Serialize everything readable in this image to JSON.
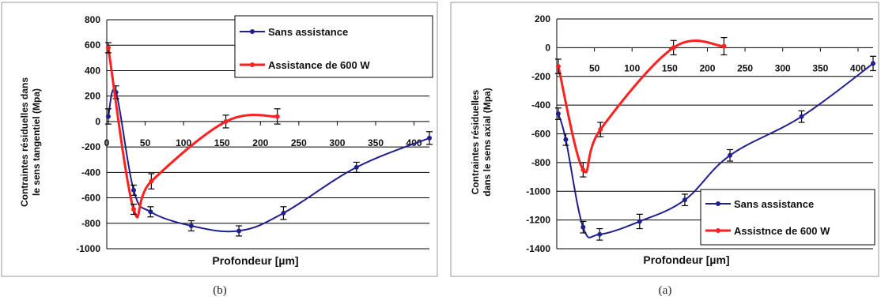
{
  "chart_data": [
    {
      "type": "line",
      "caption": "(b)",
      "xlabel": "Profondeur [µm]",
      "ylabel": "Contraintes résiduelles dans le sens tangentiel (Mpa)",
      "ylabel_lines": [
        "Contraintes résiduelles dans",
        "le sens tangentiel (Mpa)"
      ],
      "xlim": [
        0,
        420
      ],
      "ylim": [
        -1000,
        800
      ],
      "xticks": [
        0,
        50,
        100,
        150,
        200,
        250,
        300,
        350,
        400
      ],
      "xtick_labels": [
        "0",
        "50",
        "100",
        "150",
        "200",
        "250",
        "300",
        "350",
        "400"
      ],
      "yticks": [
        800,
        600,
        400,
        200,
        0,
        -200,
        -400,
        -600,
        -800,
        -1000
      ],
      "ytick_labels": [
        "800",
        "600",
        "400",
        "200",
        "0",
        "-200",
        "-400",
        "-600",
        "-800",
        "-1000"
      ],
      "grid": true,
      "legend_position": "top-right",
      "series": [
        {
          "name": "Sans assistance",
          "color": "#1f1f8f",
          "x": [
            2,
            12,
            35,
            57,
            110,
            172,
            230,
            325,
            420
          ],
          "y": [
            40,
            230,
            -540,
            -710,
            -820,
            -860,
            -720,
            -360,
            -130
          ],
          "err": [
            60,
            50,
            40,
            40,
            40,
            40,
            50,
            40,
            50
          ]
        },
        {
          "name": "Assistance de 600 W",
          "color": "#ff2020",
          "x": [
            2,
            35,
            58,
            155,
            222
          ],
          "y": [
            580,
            -690,
            -470,
            0,
            40
          ],
          "err": [
            40,
            40,
            60,
            50,
            60
          ]
        }
      ]
    },
    {
      "type": "line",
      "caption": "(a)",
      "xlabel": "Profondeur [µm]",
      "ylabel": "Contraintes résiduelles dans le sens axial (Mpa)",
      "ylabel_lines": [
        "Contraintes résiduelles",
        "dans le sens axial (Mpa)"
      ],
      "xlim": [
        0,
        420
      ],
      "ylim": [
        -1400,
        200
      ],
      "xticks": [
        50,
        100,
        150,
        200,
        250,
        300,
        350,
        400
      ],
      "xtick_labels": [
        "50",
        "100",
        "150",
        "200",
        "250",
        "300",
        "350",
        "400"
      ],
      "yticks": [
        200,
        0,
        -200,
        -400,
        -600,
        -800,
        -1000,
        -1200,
        -1400
      ],
      "ytick_labels": [
        "200",
        "0",
        "-200",
        "-400",
        "-600",
        "-800",
        "-1000",
        "-1200",
        "-1400"
      ],
      "grid": true,
      "legend_position": "bottom-right",
      "series": [
        {
          "name": "Sans assistance",
          "color": "#1f1f8f",
          "x": [
            2,
            12,
            35,
            57,
            110,
            170,
            230,
            325,
            420
          ],
          "y": [
            -460,
            -640,
            -1250,
            -1300,
            -1210,
            -1060,
            -750,
            -480,
            -110
          ],
          "err": [
            40,
            40,
            40,
            40,
            50,
            40,
            40,
            40,
            50
          ]
        },
        {
          "name": "Assistnce de 600 W",
          "color": "#ff2020",
          "x": [
            2,
            35,
            58,
            155,
            222
          ],
          "y": [
            -130,
            -850,
            -570,
            0,
            10
          ],
          "err": [
            50,
            50,
            50,
            50,
            60
          ]
        }
      ]
    }
  ]
}
